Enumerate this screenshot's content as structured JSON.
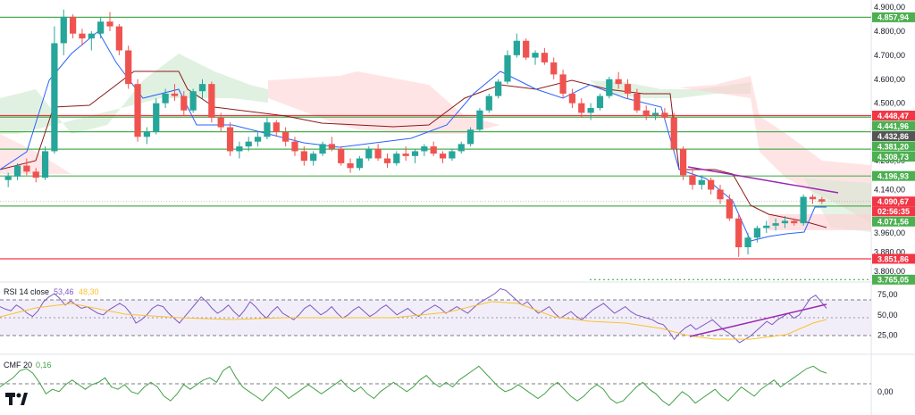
{
  "chart_data": {
    "type": "candlestick",
    "price_axis": {
      "ylim": [
        3770,
        4930
      ],
      "ticks": [
        "4.900,00",
        "4.800,00",
        "4.700,00",
        "4.600,00",
        "4.500,00",
        "4.260,00",
        "4.140,00",
        "3.960,00",
        "3.880,00",
        "3.800,00"
      ],
      "tick_values": [
        4900,
        4800,
        4700,
        4600,
        4500,
        4260,
        4140,
        3960,
        3880,
        3800
      ]
    },
    "levels": [
      {
        "label": "4.857,94",
        "value": 4857.94,
        "color": "#4caf50"
      },
      {
        "label": "4.448,47",
        "value": 4448.47,
        "color": "#f23645"
      },
      {
        "label": "4.441,96",
        "value": 4441.96,
        "color": "#4caf50"
      },
      {
        "label": "4.432,86",
        "value": 4432.86,
        "color": "#555555"
      },
      {
        "label": "4.381,20",
        "value": 4381.2,
        "color": "#4caf50"
      },
      {
        "label": "4.308,73",
        "value": 4308.73,
        "color": "#4caf50"
      },
      {
        "label": "4.196,93",
        "value": 4196.93,
        "color": "#4caf50"
      },
      {
        "label": "4.090,67",
        "value": 4090.67,
        "color": "#f23645"
      },
      {
        "label": "02:56:35",
        "value": 4068,
        "color": "#f23645"
      },
      {
        "label": "4.071,56",
        "value": 4071.56,
        "color": "#4caf50"
      },
      {
        "label": "3.851,86",
        "value": 3851.86,
        "color": "#f23645"
      },
      {
        "label": "3.765,05",
        "value": 3765.05,
        "color": "#4caf50"
      }
    ],
    "rsi": {
      "legend_name": "RSI 14 close",
      "value1": "53,46",
      "value2": "48,30",
      "ticks": [
        "75,00",
        "50,00",
        "25,00"
      ],
      "tick_values": [
        75,
        50,
        25
      ],
      "ylim": [
        5,
        88
      ],
      "values": [
        60,
        57,
        55,
        62,
        58,
        52,
        48,
        55,
        66,
        72,
        76,
        70,
        62,
        67,
        62,
        58,
        60,
        56,
        52,
        50,
        56,
        60,
        64,
        60,
        52,
        40,
        44,
        50,
        58,
        62,
        60,
        52,
        46,
        40,
        48,
        56,
        64,
        72,
        66,
        58,
        52,
        56,
        62,
        54,
        48,
        56,
        66,
        60,
        52,
        46,
        54,
        60,
        52,
        48,
        44,
        50,
        58,
        62,
        56,
        50,
        54,
        60,
        52,
        46,
        50,
        56,
        60,
        54,
        48,
        52,
        58,
        62,
        56,
        50,
        54,
        58,
        52,
        48,
        54,
        58,
        62,
        58,
        52,
        56,
        60,
        56,
        52,
        58,
        64,
        68,
        72,
        76,
        82,
        80,
        74,
        68,
        62,
        66,
        58,
        52,
        56,
        60,
        52,
        46,
        50,
        54,
        48,
        44,
        50,
        56,
        60,
        64,
        58,
        52,
        56,
        60,
        54,
        50,
        48,
        46,
        44,
        40,
        38,
        30,
        20,
        28,
        34,
        38,
        32,
        36,
        40,
        44,
        38,
        32,
        28,
        22,
        16,
        20,
        24,
        30,
        36,
        42,
        38,
        44,
        48,
        52,
        46,
        50,
        60,
        70,
        74,
        66,
        58
      ]
    },
    "cmf": {
      "legend_name": "CMF 20",
      "value": "0,16",
      "ticks": [
        "0,00"
      ],
      "tick_values": [
        0
      ],
      "ylim": [
        -0.18,
        0.3
      ],
      "values": [
        0.04,
        0.08,
        0.12,
        0.18,
        0.2,
        0.16,
        0.08,
        -0.02,
        0.02,
        0.0,
        0.06,
        0.1,
        0.06,
        0.02,
        0.06,
        0.08,
        0.12,
        0.04,
        0.02,
        0.06,
        0.0,
        -0.02,
        0.04,
        0.08,
        0.04,
        -0.04,
        -0.08,
        -0.02,
        0.06,
        0.02,
        0.06,
        0.1,
        0.12,
        0.08,
        0.18,
        0.22,
        0.12,
        0.04,
        0.0,
        -0.04,
        -0.08,
        -0.02,
        0.04,
        0.0,
        -0.06,
        -0.02,
        0.02,
        0.06,
        0.02,
        -0.02,
        0.02,
        0.06,
        0.1,
        0.04,
        0.0,
        0.04,
        -0.02,
        -0.06,
        0.0,
        0.04,
        0.08,
        0.04,
        0.0,
        0.04,
        0.1,
        0.14,
        0.08,
        0.04,
        0.08,
        0.04,
        0.1,
        0.14,
        0.18,
        0.22,
        0.16,
        0.1,
        0.04,
        0.0,
        0.02,
        0.06,
        0.02,
        -0.02,
        -0.06,
        -0.02,
        0.04,
        0.08,
        0.02,
        -0.04,
        -0.08,
        -0.04,
        0.02,
        0.06,
        0.02,
        -0.06,
        -0.1,
        -0.08,
        -0.02,
        0.04,
        0.08,
        0.02,
        -0.02,
        -0.08,
        -0.12,
        -0.06,
        0.0,
        -0.04,
        -0.1,
        -0.06,
        -0.02,
        0.02,
        -0.04,
        -0.08,
        -0.02,
        0.04,
        0.0,
        -0.04,
        0.02,
        0.06,
        0.1,
        0.04,
        0.08,
        0.12,
        0.16,
        0.2,
        0.22,
        0.18,
        0.16
      ]
    },
    "candles": [
      [
        4180,
        4210,
        4150,
        4195
      ],
      [
        4195,
        4250,
        4180,
        4240
      ],
      [
        4240,
        4270,
        4200,
        4215
      ],
      [
        4215,
        4230,
        4170,
        4190
      ],
      [
        4190,
        4320,
        4180,
        4300
      ],
      [
        4300,
        4820,
        4290,
        4750
      ],
      [
        4750,
        4890,
        4700,
        4860
      ],
      [
        4860,
        4870,
        4770,
        4790
      ],
      [
        4790,
        4810,
        4740,
        4770
      ],
      [
        4770,
        4800,
        4720,
        4790
      ],
      [
        4790,
        4860,
        4770,
        4840
      ],
      [
        4840,
        4880,
        4800,
        4820
      ],
      [
        4820,
        4830,
        4700,
        4720
      ],
      [
        4720,
        4740,
        4560,
        4580
      ],
      [
        4580,
        4600,
        4340,
        4360
      ],
      [
        4360,
        4400,
        4330,
        4380
      ],
      [
        4380,
        4520,
        4370,
        4500
      ],
      [
        4500,
        4560,
        4480,
        4540
      ],
      [
        4540,
        4580,
        4510,
        4530
      ],
      [
        4530,
        4550,
        4450,
        4470
      ],
      [
        4470,
        4560,
        4460,
        4550
      ],
      [
        4550,
        4600,
        4520,
        4580
      ],
      [
        4580,
        4590,
        4420,
        4440
      ],
      [
        4440,
        4460,
        4380,
        4400
      ],
      [
        4400,
        4420,
        4280,
        4300
      ],
      [
        4300,
        4340,
        4270,
        4320
      ],
      [
        4320,
        4360,
        4300,
        4340
      ],
      [
        4340,
        4380,
        4320,
        4360
      ],
      [
        4360,
        4440,
        4350,
        4420
      ],
      [
        4420,
        4430,
        4360,
        4380
      ],
      [
        4380,
        4400,
        4320,
        4340
      ],
      [
        4340,
        4360,
        4280,
        4300
      ],
      [
        4300,
        4320,
        4240,
        4260
      ],
      [
        4260,
        4300,
        4240,
        4290
      ],
      [
        4290,
        4340,
        4280,
        4330
      ],
      [
        4330,
        4360,
        4300,
        4310
      ],
      [
        4310,
        4320,
        4240,
        4250
      ],
      [
        4250,
        4270,
        4210,
        4230
      ],
      [
        4230,
        4280,
        4220,
        4270
      ],
      [
        4270,
        4320,
        4260,
        4310
      ],
      [
        4310,
        4330,
        4260,
        4270
      ],
      [
        4270,
        4290,
        4230,
        4250
      ],
      [
        4250,
        4300,
        4240,
        4290
      ],
      [
        4290,
        4320,
        4260,
        4280
      ],
      [
        4280,
        4310,
        4250,
        4300
      ],
      [
        4300,
        4330,
        4280,
        4320
      ],
      [
        4320,
        4340,
        4280,
        4290
      ],
      [
        4290,
        4300,
        4250,
        4270
      ],
      [
        4270,
        4310,
        4260,
        4300
      ],
      [
        4300,
        4340,
        4290,
        4330
      ],
      [
        4330,
        4400,
        4320,
        4390
      ],
      [
        4390,
        4480,
        4380,
        4470
      ],
      [
        4470,
        4540,
        4460,
        4530
      ],
      [
        4530,
        4600,
        4520,
        4590
      ],
      [
        4590,
        4720,
        4580,
        4700
      ],
      [
        4700,
        4790,
        4690,
        4760
      ],
      [
        4760,
        4770,
        4680,
        4690
      ],
      [
        4690,
        4720,
        4660,
        4710
      ],
      [
        4710,
        4730,
        4660,
        4670
      ],
      [
        4670,
        4690,
        4600,
        4620
      ],
      [
        4620,
        4640,
        4520,
        4540
      ],
      [
        4540,
        4560,
        4480,
        4500
      ],
      [
        4500,
        4520,
        4440,
        4460
      ],
      [
        4460,
        4500,
        4430,
        4480
      ],
      [
        4480,
        4540,
        4470,
        4530
      ],
      [
        4530,
        4610,
        4520,
        4600
      ],
      [
        4600,
        4630,
        4560,
        4580
      ],
      [
        4580,
        4600,
        4520,
        4540
      ],
      [
        4540,
        4560,
        4460,
        4470
      ],
      [
        4470,
        4490,
        4430,
        4450
      ],
      [
        4450,
        4480,
        4430,
        4460
      ],
      [
        4460,
        4480,
        4430,
        4440
      ],
      [
        4440,
        4460,
        4300,
        4310
      ],
      [
        4310,
        4320,
        4180,
        4200
      ],
      [
        4200,
        4220,
        4140,
        4160
      ],
      [
        4160,
        4200,
        4140,
        4180
      ],
      [
        4180,
        4190,
        4120,
        4140
      ],
      [
        4140,
        4160,
        4080,
        4100
      ],
      [
        4100,
        4120,
        4010,
        4020
      ],
      [
        4020,
        4040,
        3860,
        3900
      ],
      [
        3900,
        3960,
        3870,
        3940
      ],
      [
        3940,
        3990,
        3920,
        3980
      ],
      [
        3980,
        4010,
        3960,
        3990
      ],
      [
        3990,
        4020,
        3970,
        4000
      ],
      [
        4000,
        4030,
        3980,
        4010
      ],
      [
        4010,
        4020,
        3990,
        4000
      ],
      [
        4000,
        4120,
        3990,
        4110
      ],
      [
        4110,
        4120,
        4080,
        4100
      ],
      [
        4100,
        4110,
        4080,
        4090
      ]
    ]
  }
}
